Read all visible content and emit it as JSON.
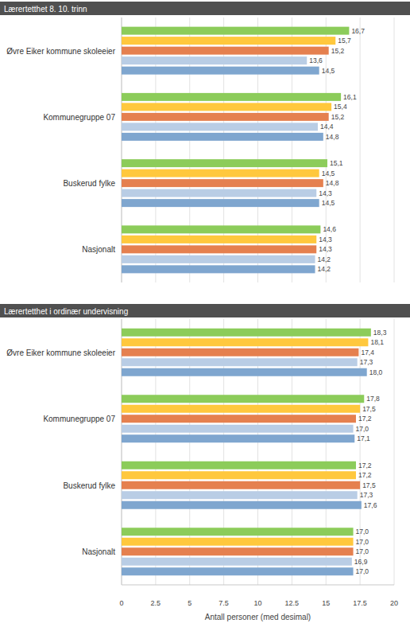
{
  "chart_data": [
    {
      "type": "bar",
      "orientation": "horizontal",
      "title": "Lærertetthet 8. 10. trinn",
      "categories": [
        "Øvre Eiker kommune skoleeier",
        "Kommunegruppe 07",
        "Buskerud fylke",
        "Nasjonalt"
      ],
      "series": [
        {
          "color": "#8ccc5a",
          "values": [
            16.7,
            16.1,
            15.1,
            14.6
          ],
          "value_labels": [
            "16,7",
            "16,1",
            "15,1",
            "14,6"
          ]
        },
        {
          "color": "#ffc83d",
          "values": [
            15.7,
            15.4,
            14.5,
            14.3
          ],
          "value_labels": [
            "15,7",
            "15,4",
            "14,5",
            "14,3"
          ]
        },
        {
          "color": "#e5804f",
          "values": [
            15.2,
            15.2,
            14.8,
            14.3
          ],
          "value_labels": [
            "15,2",
            "15,2",
            "14,8",
            "14,3"
          ]
        },
        {
          "color": "#b9cde5",
          "values": [
            13.6,
            14.4,
            14.3,
            14.2
          ],
          "value_labels": [
            "13,6",
            "14,4",
            "14,3",
            "14,2"
          ]
        },
        {
          "color": "#7fa6cf",
          "values": [
            14.5,
            14.8,
            14.5,
            14.2
          ],
          "value_labels": [
            "14,5",
            "14,8",
            "14,5",
            "14,2"
          ]
        }
      ],
      "xlim": [
        0,
        20
      ],
      "xticks": [
        0,
        2.5,
        5,
        7.5,
        10,
        12.5,
        15,
        17.5,
        20
      ],
      "grid": true,
      "data_labels": true,
      "tick_labels": "y"
    },
    {
      "type": "bar",
      "orientation": "horizontal",
      "title": "Lærertetthet i ordinær undervisning",
      "xlabel": "Antall personer (med desimal)",
      "categories": [
        "Øvre Eiker kommune skoleeier",
        "Kommunegruppe 07",
        "Buskerud fylke",
        "Nasjonalt"
      ],
      "series": [
        {
          "color": "#8ccc5a",
          "values": [
            18.3,
            17.8,
            17.2,
            17.0
          ],
          "value_labels": [
            "18,3",
            "17,8",
            "17,2",
            "17,0"
          ]
        },
        {
          "color": "#ffc83d",
          "values": [
            18.1,
            17.5,
            17.2,
            17.0
          ],
          "value_labels": [
            "18,1",
            "17,5",
            "17,2",
            "17,0"
          ]
        },
        {
          "color": "#e5804f",
          "values": [
            17.4,
            17.2,
            17.5,
            17.0
          ],
          "value_labels": [
            "17,4",
            "17,2",
            "17,5",
            "17,0"
          ]
        },
        {
          "color": "#b9cde5",
          "values": [
            17.3,
            17.0,
            17.3,
            16.9
          ],
          "value_labels": [
            "17,3",
            "17,0",
            "17,3",
            "16,9"
          ]
        },
        {
          "color": "#7fa6cf",
          "values": [
            18.0,
            17.1,
            17.6,
            17.0
          ],
          "value_labels": [
            "18,0",
            "17,1",
            "17,6",
            "17,0"
          ]
        }
      ],
      "xlim": [
        0,
        20
      ],
      "xticks": [
        0,
        2.5,
        5,
        7.5,
        10,
        12.5,
        15,
        17.5,
        20
      ],
      "grid": true,
      "data_labels": true,
      "tick_labels": true
    }
  ]
}
